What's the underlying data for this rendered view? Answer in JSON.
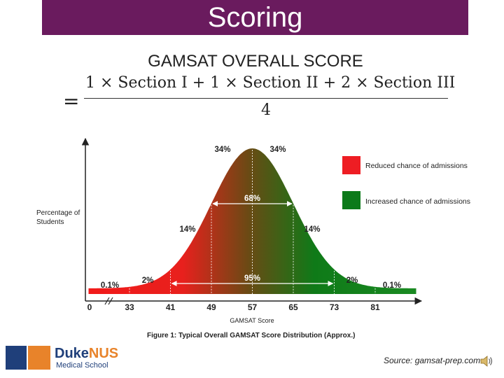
{
  "slide_title": "Scoring",
  "formula": {
    "title": "GAMSAT OVERALL SCORE",
    "equals": "=",
    "numerator": "1 × Section I + 1 × Section II + 2 × Section III",
    "denominator": "4"
  },
  "chart_data": {
    "type": "area",
    "title": "",
    "ylabel": "Percentage of Students",
    "xlabel": "GAMSAT Score",
    "caption": "Figure 1: Typical Overall GAMSAT Score Distribution (Approx.)",
    "x_ticks": [
      "0",
      "33",
      "41",
      "49",
      "57",
      "65",
      "73",
      "81"
    ],
    "x_tick_values": [
      0,
      33,
      41,
      49,
      57,
      65,
      73,
      81
    ],
    "axis_break_after": "0",
    "distribution": {
      "mean": 57,
      "sd": 8
    },
    "regions": [
      {
        "from": 25,
        "to": 33,
        "label": "0.1%"
      },
      {
        "from": 33,
        "to": 41,
        "label": "2%"
      },
      {
        "from": 41,
        "to": 49,
        "label": "14%"
      },
      {
        "from": 49,
        "to": 57,
        "label": "34%"
      },
      {
        "from": 57,
        "to": 65,
        "label": "34%"
      },
      {
        "from": 65,
        "to": 73,
        "label": "14%"
      },
      {
        "from": 73,
        "to": 81,
        "label": "2%"
      },
      {
        "from": 81,
        "to": 89,
        "label": "0.1%"
      }
    ],
    "brackets": [
      {
        "from": 49,
        "to": 65,
        "label": "68%"
      },
      {
        "from": 41,
        "to": 73,
        "label": "95%"
      }
    ],
    "colors": {
      "reduced": "#e8201d",
      "increased": "#0f7a18"
    },
    "legend": [
      {
        "label": "Reduced chance of admissions",
        "color": "#ee1d23"
      },
      {
        "label": "Increased chance of admissions",
        "color": "#0c7a1a"
      }
    ],
    "legend_position": "top-right"
  },
  "footer": {
    "logo_brand_a": "Duke",
    "logo_brand_b": "NUS",
    "logo_sub": "Medical School",
    "source": "Source: gamsat-prep.com"
  }
}
